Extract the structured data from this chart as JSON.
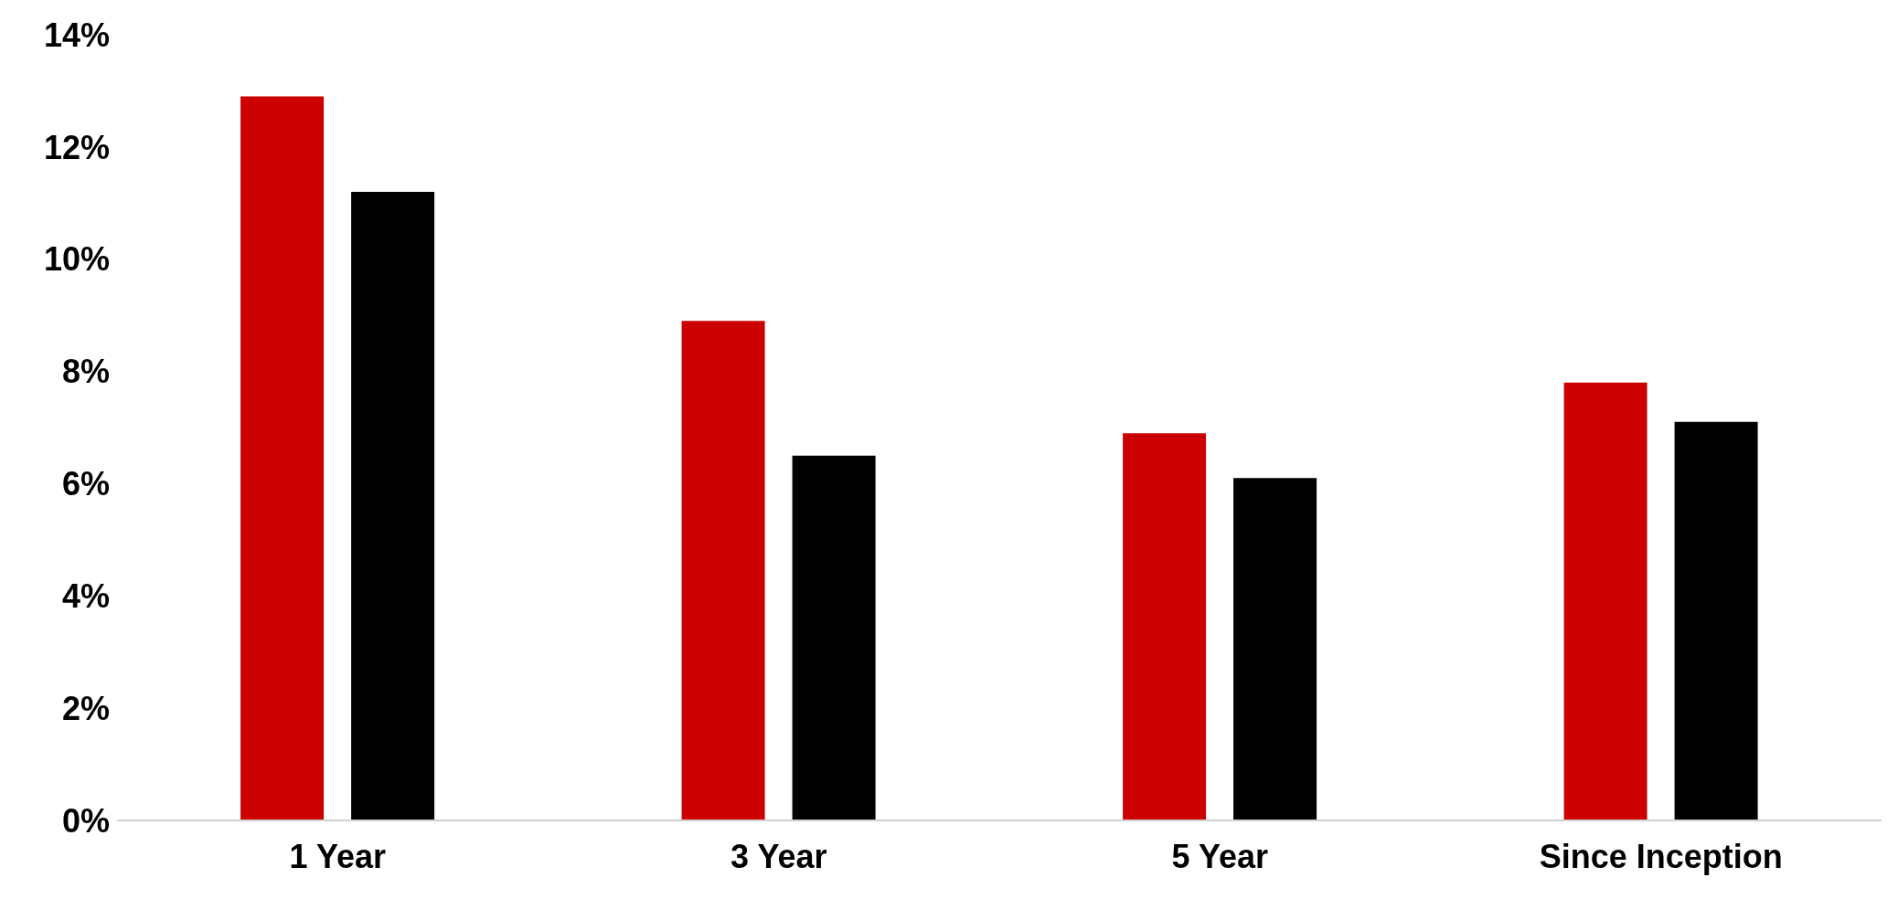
{
  "chart_data": {
    "type": "bar",
    "categories": [
      "1 Year",
      "3 Year",
      "5 Year",
      "Since Inception"
    ],
    "series": [
      {
        "color": "#cc0000",
        "values": [
          12.9,
          8.9,
          6.9,
          7.8
        ]
      },
      {
        "color": "#000000",
        "values": [
          11.2,
          6.5,
          6.1,
          7.1
        ]
      }
    ],
    "ylim": [
      0,
      14
    ],
    "yticks": [
      {
        "value": 0,
        "label": "0%"
      },
      {
        "value": 2,
        "label": "2%"
      },
      {
        "value": 4,
        "label": "4%"
      },
      {
        "value": 6,
        "label": "6%"
      },
      {
        "value": 8,
        "label": "8%"
      },
      {
        "value": 10,
        "label": "10%"
      },
      {
        "value": 12,
        "label": "12%"
      },
      {
        "value": 14,
        "label": "14%"
      }
    ],
    "grid": false,
    "legend": false
  }
}
